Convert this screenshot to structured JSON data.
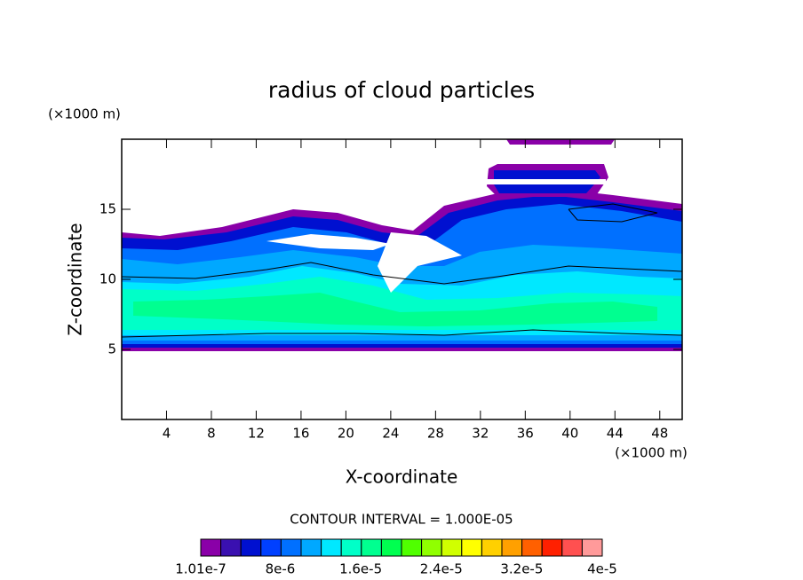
{
  "chart_data": {
    "type": "contour",
    "title": "radius of cloud particles",
    "x_label": "X-coordinate",
    "y_label": "Z-coordinate",
    "x_unit": "(×1000 m)",
    "y_unit": "(×1000 m)",
    "xlim": [
      0,
      50
    ],
    "ylim": [
      0,
      20
    ],
    "xticks": [
      4,
      8,
      12,
      16,
      20,
      24,
      28,
      32,
      36,
      40,
      44,
      48
    ],
    "yticks": [
      5,
      10,
      15
    ],
    "annotation": "CONTOUR INTERVAL = 1.000E-05",
    "colorbar": {
      "colors": [
        "#8a00a8",
        "#3a10b0",
        "#0010d0",
        "#0040ff",
        "#0070ff",
        "#00a8ff",
        "#00e8ff",
        "#00ffc8",
        "#00ff90",
        "#00ff50",
        "#50ff00",
        "#90ff00",
        "#d0ff00",
        "#ffff00",
        "#ffd000",
        "#ffa000",
        "#ff6000",
        "#ff2000",
        "#ff5050",
        "#ff9a9a"
      ],
      "ticks": [
        {
          "value": 1.01e-07,
          "label": "1.01e-7"
        },
        {
          "value": 8e-06,
          "label": "8e-6"
        },
        {
          "value": 1.6e-05,
          "label": "1.6e-5"
        },
        {
          "value": 2.4e-05,
          "label": "2.4e-5"
        },
        {
          "value": 3.2e-05,
          "label": "3.2e-5"
        },
        {
          "value": 4e-05,
          "label": "4e-5"
        }
      ]
    }
  }
}
